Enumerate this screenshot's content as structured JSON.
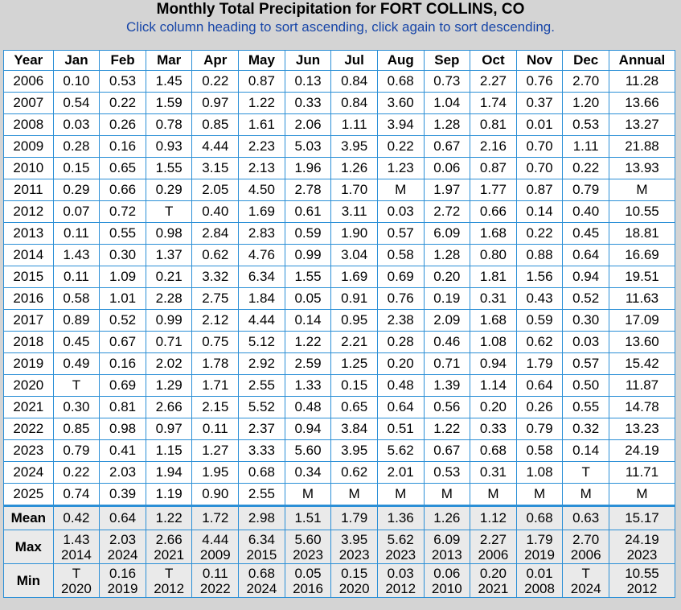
{
  "title": "Monthly Total Precipitation for FORT COLLINS, CO",
  "subtitle": "Click column heading to sort ascending, click again to sort descending.",
  "headers": [
    "Year",
    "Jan",
    "Feb",
    "Mar",
    "Apr",
    "May",
    "Jun",
    "Jul",
    "Aug",
    "Sep",
    "Oct",
    "Nov",
    "Dec",
    "Annual"
  ],
  "rows": [
    [
      "2006",
      "0.10",
      "0.53",
      "1.45",
      "0.22",
      "0.87",
      "0.13",
      "0.84",
      "0.68",
      "0.73",
      "2.27",
      "0.76",
      "2.70",
      "11.28"
    ],
    [
      "2007",
      "0.54",
      "0.22",
      "1.59",
      "0.97",
      "1.22",
      "0.33",
      "0.84",
      "3.60",
      "1.04",
      "1.74",
      "0.37",
      "1.20",
      "13.66"
    ],
    [
      "2008",
      "0.03",
      "0.26",
      "0.78",
      "0.85",
      "1.61",
      "2.06",
      "1.11",
      "3.94",
      "1.28",
      "0.81",
      "0.01",
      "0.53",
      "13.27"
    ],
    [
      "2009",
      "0.28",
      "0.16",
      "0.93",
      "4.44",
      "2.23",
      "5.03",
      "3.95",
      "0.22",
      "0.67",
      "2.16",
      "0.70",
      "1.11",
      "21.88"
    ],
    [
      "2010",
      "0.15",
      "0.65",
      "1.55",
      "3.15",
      "2.13",
      "1.96",
      "1.26",
      "1.23",
      "0.06",
      "0.87",
      "0.70",
      "0.22",
      "13.93"
    ],
    [
      "2011",
      "0.29",
      "0.66",
      "0.29",
      "2.05",
      "4.50",
      "2.78",
      "1.70",
      "M",
      "1.97",
      "1.77",
      "0.87",
      "0.79",
      "M"
    ],
    [
      "2012",
      "0.07",
      "0.72",
      "T",
      "0.40",
      "1.69",
      "0.61",
      "3.11",
      "0.03",
      "2.72",
      "0.66",
      "0.14",
      "0.40",
      "10.55"
    ],
    [
      "2013",
      "0.11",
      "0.55",
      "0.98",
      "2.84",
      "2.83",
      "0.59",
      "1.90",
      "0.57",
      "6.09",
      "1.68",
      "0.22",
      "0.45",
      "18.81"
    ],
    [
      "2014",
      "1.43",
      "0.30",
      "1.37",
      "0.62",
      "4.76",
      "0.99",
      "3.04",
      "0.58",
      "1.28",
      "0.80",
      "0.88",
      "0.64",
      "16.69"
    ],
    [
      "2015",
      "0.11",
      "1.09",
      "0.21",
      "3.32",
      "6.34",
      "1.55",
      "1.69",
      "0.69",
      "0.20",
      "1.81",
      "1.56",
      "0.94",
      "19.51"
    ],
    [
      "2016",
      "0.58",
      "1.01",
      "2.28",
      "2.75",
      "1.84",
      "0.05",
      "0.91",
      "0.76",
      "0.19",
      "0.31",
      "0.43",
      "0.52",
      "11.63"
    ],
    [
      "2017",
      "0.89",
      "0.52",
      "0.99",
      "2.12",
      "4.44",
      "0.14",
      "0.95",
      "2.38",
      "2.09",
      "1.68",
      "0.59",
      "0.30",
      "17.09"
    ],
    [
      "2018",
      "0.45",
      "0.67",
      "0.71",
      "0.75",
      "5.12",
      "1.22",
      "2.21",
      "0.28",
      "0.46",
      "1.08",
      "0.62",
      "0.03",
      "13.60"
    ],
    [
      "2019",
      "0.49",
      "0.16",
      "2.02",
      "1.78",
      "2.92",
      "2.59",
      "1.25",
      "0.20",
      "0.71",
      "0.94",
      "1.79",
      "0.57",
      "15.42"
    ],
    [
      "2020",
      "T",
      "0.69",
      "1.29",
      "1.71",
      "2.55",
      "1.33",
      "0.15",
      "0.48",
      "1.39",
      "1.14",
      "0.64",
      "0.50",
      "11.87"
    ],
    [
      "2021",
      "0.30",
      "0.81",
      "2.66",
      "2.15",
      "5.52",
      "0.48",
      "0.65",
      "0.64",
      "0.56",
      "0.20",
      "0.26",
      "0.55",
      "14.78"
    ],
    [
      "2022",
      "0.85",
      "0.98",
      "0.97",
      "0.11",
      "2.37",
      "0.94",
      "3.84",
      "0.51",
      "1.22",
      "0.33",
      "0.79",
      "0.32",
      "13.23"
    ],
    [
      "2023",
      "0.79",
      "0.41",
      "1.15",
      "1.27",
      "3.33",
      "5.60",
      "3.95",
      "5.62",
      "0.67",
      "0.68",
      "0.58",
      "0.14",
      "24.19"
    ],
    [
      "2024",
      "0.22",
      "2.03",
      "1.94",
      "1.95",
      "0.68",
      "0.34",
      "0.62",
      "2.01",
      "0.53",
      "0.31",
      "1.08",
      "T",
      "11.71"
    ],
    [
      "2025",
      "0.74",
      "0.39",
      "1.19",
      "0.90",
      "2.55",
      "M",
      "M",
      "M",
      "M",
      "M",
      "M",
      "M",
      "M"
    ]
  ],
  "summary": {
    "mean": {
      "label": "Mean",
      "values": [
        "0.42",
        "0.64",
        "1.22",
        "1.72",
        "2.98",
        "1.51",
        "1.79",
        "1.36",
        "1.26",
        "1.12",
        "0.68",
        "0.63",
        "15.17"
      ]
    },
    "max": {
      "label": "Max",
      "values": [
        "1.43",
        "2.03",
        "2.66",
        "4.44",
        "6.34",
        "5.60",
        "3.95",
        "5.62",
        "6.09",
        "2.27",
        "1.79",
        "2.70",
        "24.19"
      ],
      "years": [
        "2014",
        "2024",
        "2021",
        "2009",
        "2015",
        "2023",
        "2023",
        "2023",
        "2013",
        "2006",
        "2019",
        "2006",
        "2023"
      ]
    },
    "min": {
      "label": "Min",
      "values": [
        "T",
        "0.16",
        "T",
        "0.11",
        "0.68",
        "0.05",
        "0.15",
        "0.03",
        "0.06",
        "0.20",
        "0.01",
        "T",
        "10.55"
      ],
      "years": [
        "2020",
        "2019",
        "2012",
        "2022",
        "2024",
        "2016",
        "2020",
        "2012",
        "2010",
        "2021",
        "2008",
        "2024",
        "2012"
      ]
    }
  },
  "colors": {
    "border": "#2b8fd6",
    "subtitle": "#1846a8",
    "summary_bg": "#eaeaea",
    "page_bg": "#d4d4d4"
  }
}
